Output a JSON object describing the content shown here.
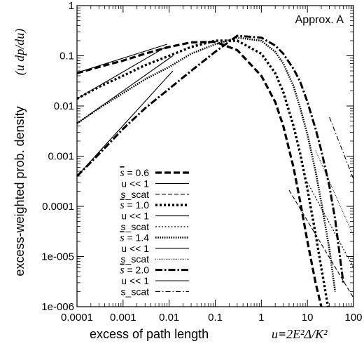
{
  "chart_data": {
    "type": "line",
    "title": "",
    "annotation": "Approx. A",
    "xlabel": "excess of path length",
    "xlabel_math": "u≡2E²Δ/K²",
    "ylabel": "excess-weighted prob. density",
    "ylabel_math": "(u dp/du)",
    "xscale": "log",
    "yscale": "log",
    "xlim": [
      0.0001,
      100
    ],
    "ylim": [
      1e-06,
      1
    ],
    "grid": false,
    "legend_position": "bottom-left",
    "x_tick_labels": [
      "0.0001",
      "0.001",
      "0.01",
      "0.1",
      "1",
      "10",
      "100"
    ],
    "y_tick_labels": [
      "1e-006",
      "1e-005",
      "0.0001",
      "0.001",
      "0.01",
      "0.1",
      "1"
    ],
    "series": [
      {
        "name": "s̄ = 0.6",
        "style": "thick-dash",
        "group": 0,
        "x": [
          0.0001,
          0.0003,
          0.001,
          0.003,
          0.01,
          0.03,
          0.1,
          0.3,
          1,
          2,
          3,
          5,
          7,
          10,
          15,
          20
        ],
        "y": [
          0.045,
          0.06,
          0.08,
          0.11,
          0.15,
          0.185,
          0.19,
          0.13,
          0.04,
          0.012,
          0.004,
          0.0006,
          0.00012,
          2e-05,
          3e-06,
          1e-06
        ]
      },
      {
        "name": "u << 1",
        "style": "thin-solid",
        "group": 0,
        "x": [
          0.0001,
          0.009
        ],
        "y": [
          0.046,
          0.17
        ]
      },
      {
        "name": "s_scat",
        "style": "thin-dash",
        "group": 0,
        "x": [
          4,
          100
        ],
        "y": [
          0.00021,
          1.5e-06
        ]
      },
      {
        "name": "s̄ = 1.0",
        "style": "thick-dot",
        "group": 1,
        "x": [
          0.0001,
          0.0003,
          0.001,
          0.003,
          0.01,
          0.03,
          0.1,
          0.3,
          1,
          2,
          3,
          5,
          7,
          10,
          15,
          20,
          28
        ],
        "y": [
          0.014,
          0.024,
          0.04,
          0.065,
          0.1,
          0.15,
          0.2,
          0.2,
          0.11,
          0.045,
          0.019,
          0.004,
          0.0011,
          0.00022,
          2.8e-05,
          6e-06,
          1e-06
        ]
      },
      {
        "name": "u << 1",
        "style": "thin-solid",
        "group": 1,
        "x": [
          0.0001,
          0.009
        ],
        "y": [
          0.014,
          0.155
        ]
      },
      {
        "name": "s_scat",
        "style": "thin-dot",
        "group": 1,
        "x": [
          10,
          100
        ],
        "y": [
          0.0003,
          6e-06
        ]
      },
      {
        "name": "s̄ = 1.4",
        "style": "thick-fine-dot",
        "group": 2,
        "x": [
          0.0001,
          0.0003,
          0.001,
          0.003,
          0.01,
          0.03,
          0.1,
          0.3,
          1,
          2,
          3,
          5,
          7,
          10,
          15,
          20,
          30,
          40
        ],
        "y": [
          0.0045,
          0.009,
          0.018,
          0.034,
          0.06,
          0.11,
          0.17,
          0.23,
          0.2,
          0.12,
          0.07,
          0.025,
          0.009,
          0.0027,
          0.0005,
          0.00012,
          1.4e-05,
          2e-06
        ]
      },
      {
        "name": "u << 1",
        "style": "thin-solid",
        "group": 2,
        "x": [
          0.0001,
          0.012
        ],
        "y": [
          0.0045,
          0.1
        ]
      },
      {
        "name": "s_scat",
        "style": "thin-fine-dot",
        "group": 2,
        "x": [
          15,
          100
        ],
        "y": [
          0.0013,
          2.6e-05
        ]
      },
      {
        "name": "s̄ = 2.0",
        "style": "thick-dashdot",
        "group": 3,
        "x": [
          0.0001,
          0.0003,
          0.001,
          0.003,
          0.01,
          0.03,
          0.1,
          0.3,
          1,
          2,
          3,
          5,
          7,
          10,
          15,
          20,
          30,
          40,
          60
        ],
        "y": [
          0.0004,
          0.0011,
          0.0035,
          0.009,
          0.022,
          0.05,
          0.12,
          0.25,
          0.23,
          0.16,
          0.11,
          0.055,
          0.03,
          0.012,
          0.0035,
          0.0013,
          0.00025,
          5.5e-05,
          3e-06
        ]
      },
      {
        "name": "u << 1",
        "style": "thin-solid",
        "group": 3,
        "x": [
          0.0001,
          0.012
        ],
        "y": [
          0.0004,
          0.05
        ]
      },
      {
        "name": "s_scat",
        "style": "thin-dashdot",
        "group": 3,
        "x": [
          30,
          100
        ],
        "y": [
          0.006,
          0.00035
        ]
      }
    ]
  }
}
